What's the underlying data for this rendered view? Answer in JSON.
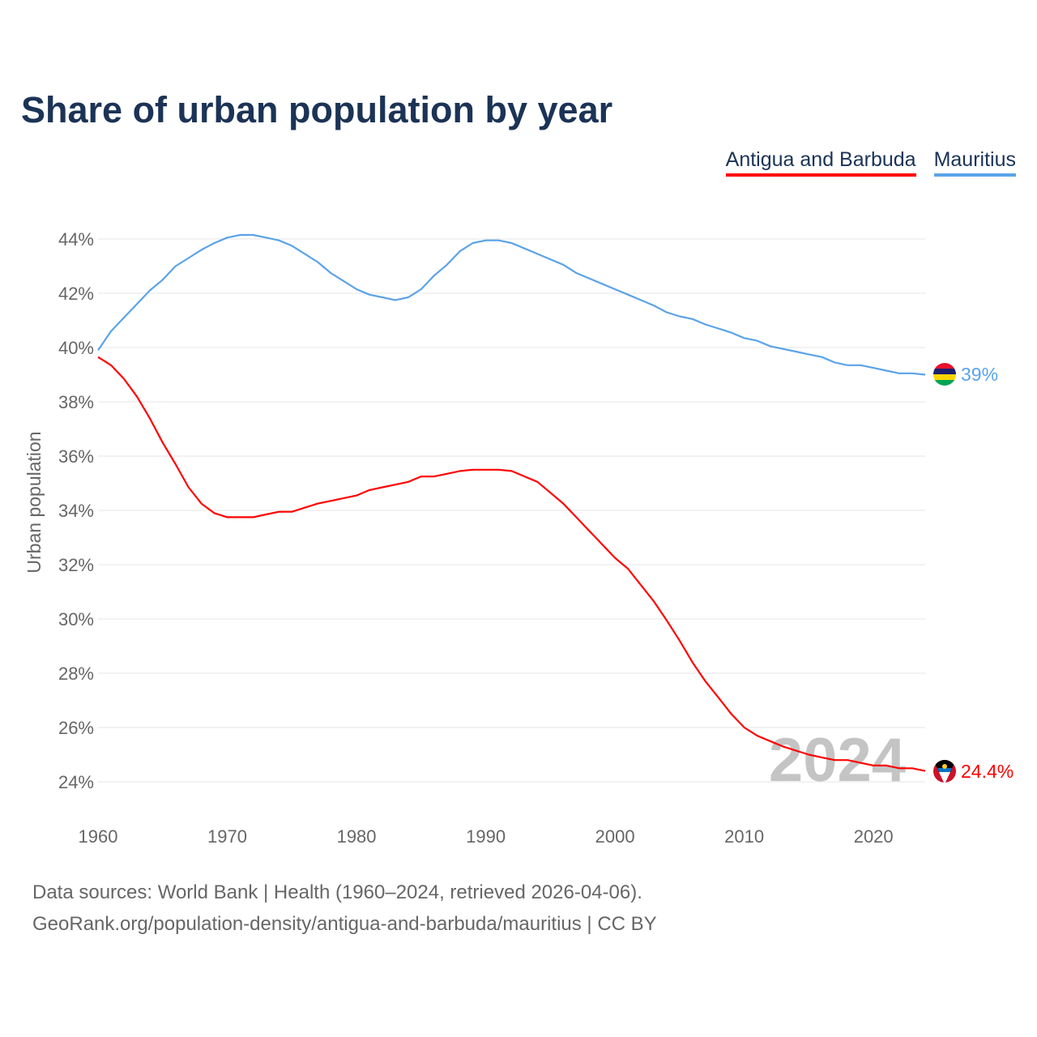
{
  "chart_data": {
    "type": "line",
    "title": "Share of urban population by year",
    "xlabel": "",
    "ylabel": "Urban population",
    "xlim": [
      1960,
      2024
    ],
    "ylim": [
      24,
      44
    ],
    "grid": true,
    "legend_position": "top-right",
    "x_ticks": [
      "1960",
      "1970",
      "1980",
      "1990",
      "2000",
      "2010",
      "2020"
    ],
    "y_ticks": [
      "24%",
      "26%",
      "28%",
      "30%",
      "32%",
      "34%",
      "36%",
      "38%",
      "40%",
      "42%",
      "44%"
    ],
    "watermark_year": "2024",
    "x": [
      1960,
      1961,
      1962,
      1963,
      1964,
      1965,
      1966,
      1967,
      1968,
      1969,
      1970,
      1971,
      1972,
      1973,
      1974,
      1975,
      1976,
      1977,
      1978,
      1979,
      1980,
      1981,
      1982,
      1983,
      1984,
      1985,
      1986,
      1987,
      1988,
      1989,
      1990,
      1991,
      1992,
      1993,
      1994,
      1995,
      1996,
      1997,
      1998,
      1999,
      2000,
      2001,
      2002,
      2003,
      2004,
      2005,
      2006,
      2007,
      2008,
      2009,
      2010,
      2011,
      2012,
      2013,
      2014,
      2015,
      2016,
      2017,
      2018,
      2019,
      2020,
      2021,
      2022,
      2023,
      2024
    ],
    "series": [
      {
        "name": "Antigua and Barbuda",
        "color": "#ff0000",
        "end_label": "24.4%",
        "values": [
          39.65,
          39.35,
          38.85,
          38.2,
          37.4,
          36.5,
          35.7,
          34.85,
          34.25,
          33.9,
          33.75,
          33.75,
          33.75,
          33.85,
          33.95,
          33.95,
          34.1,
          34.25,
          34.35,
          34.45,
          34.55,
          34.75,
          34.85,
          34.95,
          35.05,
          35.25,
          35.25,
          35.35,
          35.45,
          35.5,
          35.5,
          35.5,
          35.45,
          35.25,
          35.05,
          34.65,
          34.25,
          33.75,
          33.25,
          32.75,
          32.25,
          31.85,
          31.25,
          30.65,
          29.95,
          29.2,
          28.4,
          27.7,
          27.1,
          26.5,
          26.0,
          25.7,
          25.5,
          25.3,
          25.15,
          25.0,
          24.9,
          24.8,
          24.8,
          24.7,
          24.6,
          24.6,
          24.5,
          24.5,
          24.4
        ]
      },
      {
        "name": "Mauritius",
        "color": "#5ba3e8",
        "end_label": "39%",
        "values": [
          39.9,
          40.6,
          41.1,
          41.6,
          42.1,
          42.5,
          43.0,
          43.3,
          43.6,
          43.85,
          44.05,
          44.15,
          44.15,
          44.05,
          43.95,
          43.75,
          43.45,
          43.15,
          42.75,
          42.45,
          42.15,
          41.95,
          41.85,
          41.75,
          41.85,
          42.15,
          42.65,
          43.05,
          43.55,
          43.85,
          43.95,
          43.95,
          43.85,
          43.65,
          43.45,
          43.25,
          43.05,
          42.75,
          42.55,
          42.35,
          42.15,
          41.95,
          41.75,
          41.55,
          41.3,
          41.15,
          41.05,
          40.85,
          40.7,
          40.55,
          40.35,
          40.25,
          40.05,
          39.95,
          39.85,
          39.75,
          39.65,
          39.45,
          39.35,
          39.35,
          39.25,
          39.15,
          39.05,
          39.05,
          39.0
        ]
      }
    ]
  },
  "footer": {
    "sources": "Data sources: World Bank | Health (1960–2024, retrieved 2026-04-06).",
    "link": "GeoRank.org/population-density/antigua-and-barbuda/mauritius | CC BY"
  }
}
